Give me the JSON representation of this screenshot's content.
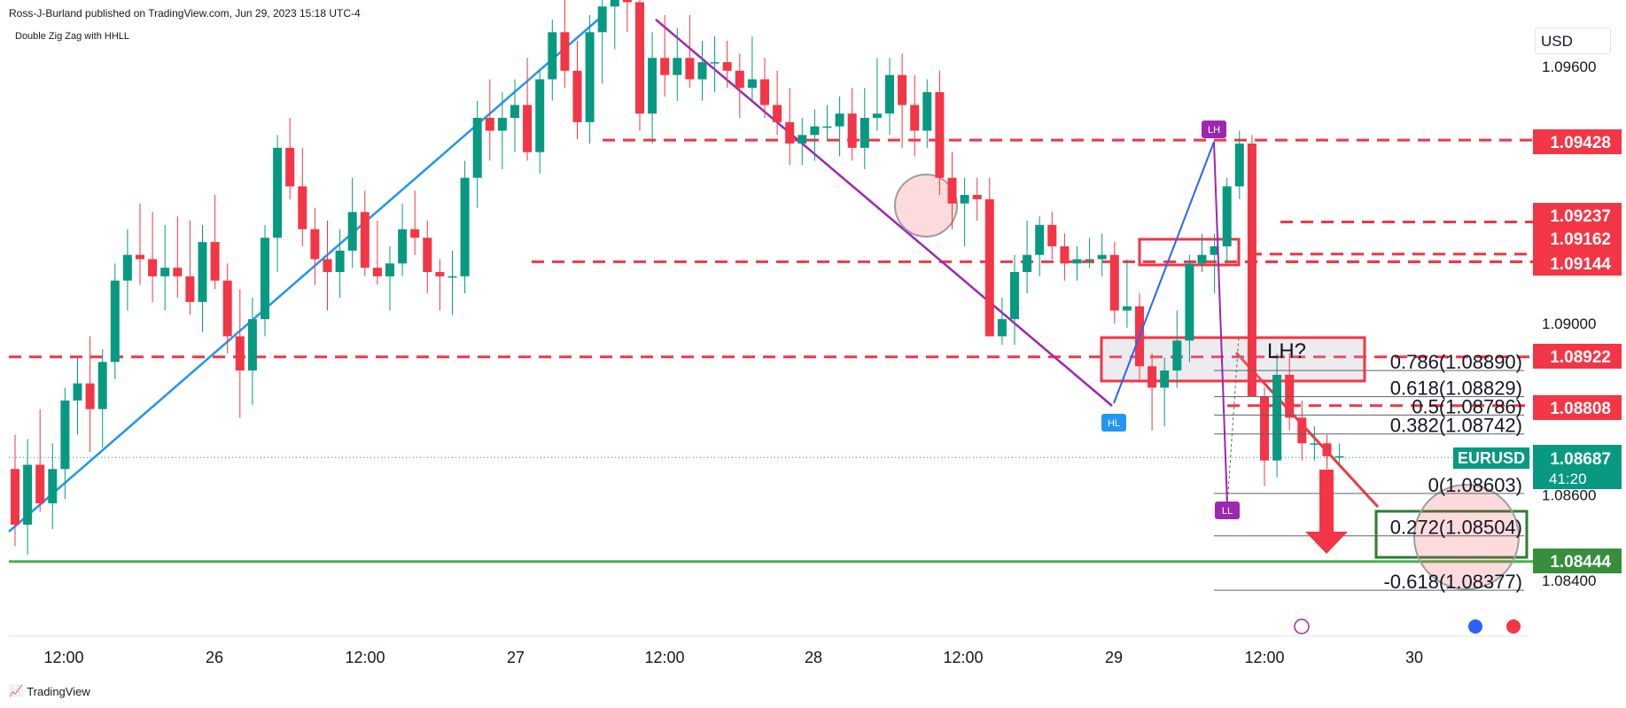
{
  "header": {
    "published": "Ross-J-Burland published on TradingView.com, Jun 29, 2023 15:18 UTC-4",
    "indicator": "Double Zig Zag with HHLL"
  },
  "currency": "USD",
  "footer": {
    "logo": "TradingView"
  },
  "colors": {
    "up": "#089981",
    "down": "#f23645",
    "trend_blue": "#2196f3",
    "trend_purple": "#9c27b0",
    "support_green": "#4caf50",
    "zigzag_blue": "#2962ff"
  },
  "chart_data": {
    "type": "candlestick",
    "symbol": "EURUSD",
    "ylim": [
      1.0828,
      1.0982
    ],
    "y_ticks": [
      "1.09600",
      "1.09000",
      "1.08600",
      "1.08400"
    ],
    "x_ticks": [
      "12:00",
      "26",
      "12:00",
      "27",
      "12:00",
      "28",
      "12:00",
      "29",
      "12:00",
      "30"
    ],
    "last_price": {
      "label": "EURUSD",
      "value": "1.08687",
      "countdown": "41:20"
    },
    "price_labels": [
      {
        "value": "1.09428",
        "color": "#f23645"
      },
      {
        "value": "1.09237",
        "color": "#f23645"
      },
      {
        "value": "1.09162",
        "color": "#f23645"
      },
      {
        "value": "1.09144",
        "color": "#f23645"
      },
      {
        "value": "1.08922",
        "color": "#f23645"
      },
      {
        "value": "1.08808",
        "color": "#f23645"
      },
      {
        "value": "1.08444",
        "color": "#388e3c"
      }
    ],
    "fib_levels": [
      {
        "label": "0.786(1.08890)",
        "price": 1.0889
      },
      {
        "label": "0.618(1.08829)",
        "price": 1.08829
      },
      {
        "label": "0.5(1.08786)",
        "price": 1.08786
      },
      {
        "label": "0.382(1.08742)",
        "price": 1.08742
      },
      {
        "label": "0(1.08603)",
        "price": 1.08603
      },
      {
        "label": "0.272(1.08504)",
        "price": 1.08504
      },
      {
        "label": "-0.618(1.08377)",
        "price": 1.08377
      }
    ],
    "zigzag_labels": [
      "LH",
      "HL",
      "LL"
    ],
    "annotation": "LH?",
    "candles": [
      [
        1.0866,
        1.0874,
        1.0848,
        1.0853
      ],
      [
        1.0853,
        1.0873,
        1.0846,
        1.0867
      ],
      [
        1.0867,
        1.088,
        1.0856,
        1.0858
      ],
      [
        1.0858,
        1.0872,
        1.0852,
        1.0866
      ],
      [
        1.0866,
        1.0885,
        1.0859,
        1.0882
      ],
      [
        1.0882,
        1.0892,
        1.0874,
        1.0886
      ],
      [
        1.0886,
        1.0897,
        1.087,
        1.088
      ],
      [
        1.088,
        1.0894,
        1.0871,
        1.0891
      ],
      [
        1.0891,
        1.0914,
        1.0887,
        1.091
      ],
      [
        1.091,
        1.0922,
        1.0903,
        1.0916
      ],
      [
        1.0916,
        1.0928,
        1.0909,
        1.0915
      ],
      [
        1.0915,
        1.0926,
        1.0905,
        1.0911
      ],
      [
        1.0911,
        1.0923,
        1.0903,
        1.0913
      ],
      [
        1.0913,
        1.0925,
        1.0906,
        1.0911
      ],
      [
        1.0911,
        1.0924,
        1.0902,
        1.0905
      ],
      [
        1.0905,
        1.0923,
        1.0898,
        1.0919
      ],
      [
        1.0919,
        1.093,
        1.0908,
        1.091
      ],
      [
        1.091,
        1.0914,
        1.0893,
        1.0897
      ],
      [
        1.0897,
        1.0908,
        1.0878,
        1.0889
      ],
      [
        1.0889,
        1.0906,
        1.0881,
        1.0901
      ],
      [
        1.0901,
        1.0923,
        1.0897,
        1.092
      ],
      [
        1.092,
        1.0944,
        1.0912,
        1.0941
      ],
      [
        1.0941,
        1.0948,
        1.0929,
        1.0932
      ],
      [
        1.0932,
        1.0941,
        1.0918,
        1.0922
      ],
      [
        1.0922,
        1.0927,
        1.0909,
        1.0915
      ],
      [
        1.0915,
        1.0924,
        1.0903,
        1.0912
      ],
      [
        1.0912,
        1.0922,
        1.0906,
        1.0917
      ],
      [
        1.0917,
        1.0934,
        1.0913,
        1.0926
      ],
      [
        1.0926,
        1.0931,
        1.0911,
        1.0913
      ],
      [
        1.0913,
        1.0924,
        1.0909,
        1.0911
      ],
      [
        1.0911,
        1.0918,
        1.0903,
        1.0914
      ],
      [
        1.0914,
        1.0928,
        1.0911,
        1.0922
      ],
      [
        1.0922,
        1.0931,
        1.0916,
        1.092
      ],
      [
        1.092,
        1.0924,
        1.0907,
        1.0912
      ],
      [
        1.0912,
        1.0915,
        1.0903,
        1.0911
      ],
      [
        1.0911,
        1.0917,
        1.0902,
        1.0911
      ],
      [
        1.0911,
        1.0938,
        1.0907,
        1.0934
      ],
      [
        1.0934,
        1.0952,
        1.0927,
        1.0948
      ],
      [
        1.0948,
        1.0957,
        1.0938,
        1.0945
      ],
      [
        1.0945,
        1.0954,
        1.0936,
        1.0948
      ],
      [
        1.0948,
        1.0957,
        1.094,
        1.0951
      ],
      [
        1.0951,
        1.0962,
        1.0938,
        1.094
      ],
      [
        1.094,
        1.0959,
        1.0935,
        1.0957
      ],
      [
        1.0957,
        1.0971,
        1.0952,
        1.0968
      ],
      [
        1.0968,
        1.0976,
        1.0955,
        1.0959
      ],
      [
        1.0959,
        1.0966,
        1.0943,
        1.0947
      ],
      [
        1.0947,
        1.0972,
        1.0942,
        1.0968
      ],
      [
        1.0968,
        1.0978,
        1.0956,
        1.0974
      ],
      [
        1.0974,
        1.0985,
        1.0964,
        1.098
      ],
      [
        1.098,
        1.0987,
        1.0968,
        1.0975
      ],
      [
        1.0975,
        1.0983,
        1.0945,
        1.0949
      ],
      [
        1.0949,
        1.0968,
        1.0942,
        1.0962
      ],
      [
        1.0962,
        1.0972,
        1.0953,
        1.0958
      ],
      [
        1.0958,
        1.0969,
        1.0952,
        1.0962
      ],
      [
        1.0962,
        1.0972,
        1.0955,
        1.0957
      ],
      [
        1.0957,
        1.0966,
        1.0952,
        1.0961
      ],
      [
        1.0961,
        1.0967,
        1.0954,
        1.0961
      ],
      [
        1.0961,
        1.0966,
        1.0955,
        1.0959
      ],
      [
        1.0959,
        1.0963,
        1.0948,
        1.0955
      ],
      [
        1.0955,
        1.0967,
        1.0952,
        1.0957
      ],
      [
        1.0957,
        1.0962,
        1.0948,
        1.0951
      ],
      [
        1.0951,
        1.0959,
        1.0944,
        1.0947
      ],
      [
        1.0947,
        1.0955,
        1.0937,
        1.0942
      ],
      [
        1.0942,
        1.0948,
        1.0937,
        1.0944
      ],
      [
        1.0944,
        1.095,
        1.0938,
        1.0946
      ],
      [
        1.0946,
        1.0951,
        1.0943,
        1.0946
      ],
      [
        1.0946,
        1.0953,
        1.0939,
        1.0949
      ],
      [
        1.0949,
        1.0955,
        1.0938,
        1.0941
      ],
      [
        1.0941,
        1.0955,
        1.0936,
        1.0948
      ],
      [
        1.0948,
        1.0962,
        1.0945,
        1.0949
      ],
      [
        1.0949,
        1.0962,
        1.0944,
        1.0958
      ],
      [
        1.0958,
        1.0963,
        1.0941,
        1.0951
      ],
      [
        1.0951,
        1.0958,
        1.0939,
        1.0945
      ],
      [
        1.0945,
        1.0957,
        1.0941,
        1.0954
      ],
      [
        1.0954,
        1.0959,
        1.093,
        1.0934
      ],
      [
        1.0934,
        1.094,
        1.0922,
        1.0928
      ],
      [
        1.0928,
        1.0934,
        1.0918,
        1.093
      ],
      [
        1.093,
        1.0934,
        1.0924,
        1.0929
      ],
      [
        1.0929,
        1.0934,
        1.0897,
        1.0897
      ],
      [
        1.0897,
        1.0906,
        1.0895,
        1.0901
      ],
      [
        1.0901,
        1.0916,
        1.0895,
        1.0912
      ],
      [
        1.0912,
        1.0924,
        1.0907,
        1.0916
      ],
      [
        1.0916,
        1.0925,
        1.0911,
        1.0923
      ],
      [
        1.0923,
        1.0926,
        1.0915,
        1.0918
      ],
      [
        1.0918,
        1.0921,
        1.091,
        1.0914
      ],
      [
        1.0914,
        1.0918,
        1.091,
        1.0915
      ],
      [
        1.0915,
        1.092,
        1.0913,
        1.0915
      ],
      [
        1.0915,
        1.0921,
        1.0911,
        1.0916
      ],
      [
        1.0916,
        1.0919,
        1.09,
        1.0903
      ],
      [
        1.0903,
        1.0915,
        1.0899,
        1.0904
      ],
      [
        1.0904,
        1.0907,
        1.0887,
        1.089
      ],
      [
        1.089,
        1.0893,
        1.0875,
        1.0885
      ],
      [
        1.0885,
        1.0892,
        1.0876,
        1.0889
      ],
      [
        1.0889,
        1.0903,
        1.0885,
        1.0896
      ],
      [
        1.0896,
        1.0916,
        1.0891,
        1.0914
      ],
      [
        1.0914,
        1.0921,
        1.0912,
        1.0916
      ],
      [
        1.0916,
        1.0921,
        1.0907,
        1.0918
      ],
      [
        1.0918,
        1.0934,
        1.0914,
        1.0932
      ],
      [
        1.0932,
        1.0945,
        1.0929,
        1.0942
      ],
      [
        1.0942,
        1.0944,
        1.0883,
        1.0883
      ],
      [
        1.0883,
        1.0885,
        1.0862,
        1.0868
      ],
      [
        1.0868,
        1.0893,
        1.0864,
        1.0888
      ],
      [
        1.0888,
        1.0893,
        1.0875,
        1.0878
      ],
      [
        1.0878,
        1.0882,
        1.0868,
        1.0872
      ],
      [
        1.0872,
        1.0876,
        1.0868,
        1.0872
      ],
      [
        1.0872,
        1.0874,
        1.0866,
        1.0869
      ],
      [
        1.0869,
        1.0872,
        1.0867,
        1.0869
      ]
    ]
  }
}
